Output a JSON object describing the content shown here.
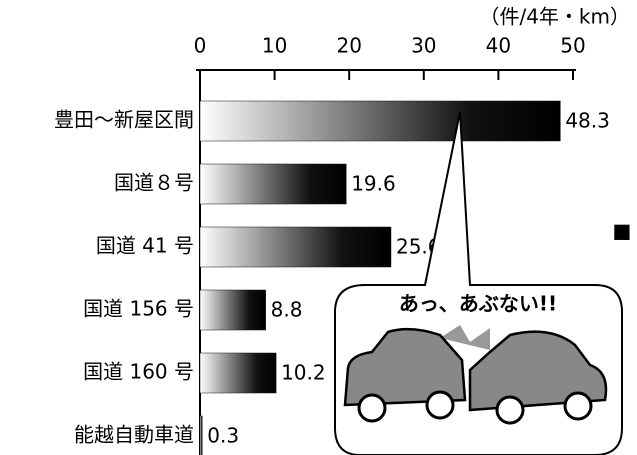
{
  "chart_data": {
    "type": "bar",
    "orientation": "horizontal",
    "unit_label": "（件/4年・km）",
    "categories": [
      "豊田〜新屋区間",
      "国道８号",
      "国道 41 号",
      "国道 156 号",
      "国道 160 号",
      "能越自動車道"
    ],
    "values": [
      48.3,
      19.6,
      25.6,
      8.8,
      10.2,
      0.3
    ],
    "color": "#111111",
    "xlim": [
      0,
      50
    ],
    "xticks": [
      0,
      10,
      20,
      30,
      40,
      50
    ],
    "annotation": "あっ、あぶない!!"
  }
}
